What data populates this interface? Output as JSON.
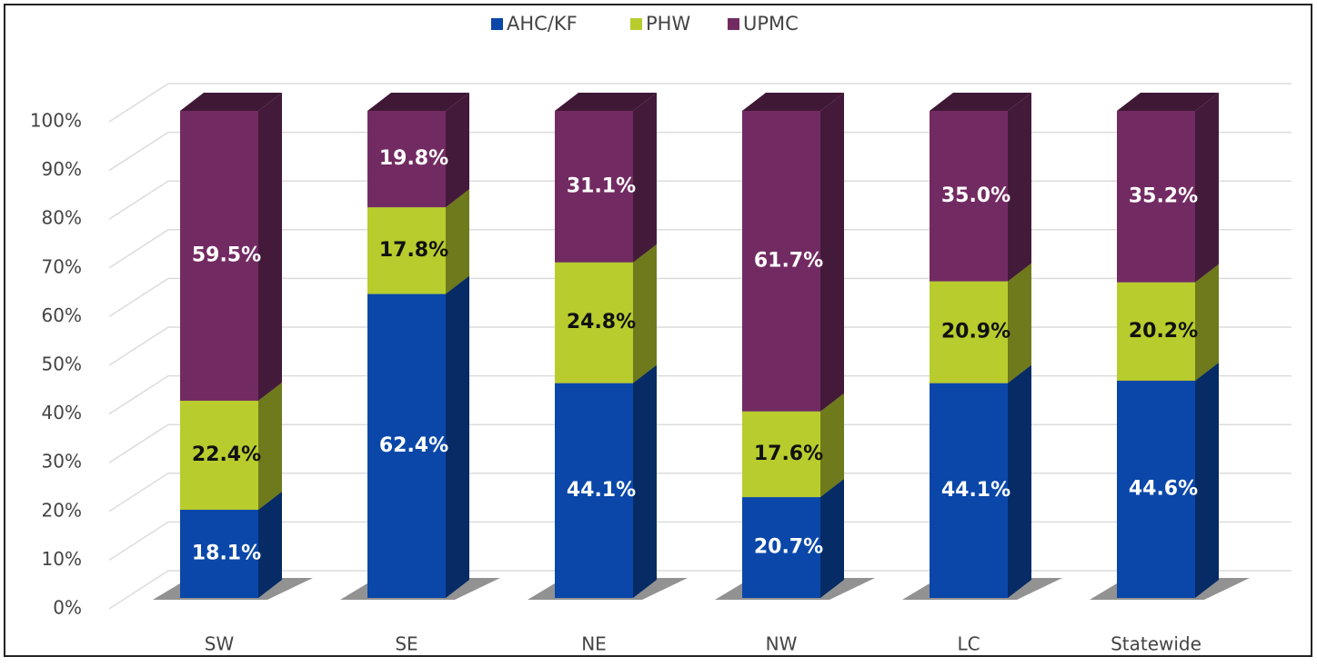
{
  "chart_data": {
    "type": "stacked_bar_3d",
    "categories": [
      "SW",
      "SE",
      "NE",
      "NW",
      "LC",
      "Statewide"
    ],
    "series": [
      {
        "name": "AHC/KF",
        "color": "#0a47a9",
        "values": [
          18.1,
          62.4,
          44.1,
          20.7,
          44.1,
          44.6
        ],
        "value_labels": [
          "18.1%",
          "62.4%",
          "44.1%",
          "20.7%",
          "44.1%",
          "44.6%"
        ]
      },
      {
        "name": "PHW",
        "color": "#b8cc2e",
        "values": [
          22.4,
          17.8,
          24.8,
          17.6,
          20.9,
          20.2
        ],
        "value_labels": [
          "22.4%",
          "17.8%",
          "24.8%",
          "17.6%",
          "20.9%",
          "20.2%"
        ]
      },
      {
        "name": "UPMC",
        "color": "#722b62",
        "values": [
          59.5,
          19.8,
          31.1,
          61.7,
          35.0,
          35.2
        ],
        "value_labels": [
          "59.5%",
          "19.8%",
          "31.1%",
          "61.7%",
          "35.0%",
          "35.2%"
        ]
      }
    ],
    "ylim": [
      0,
      100
    ],
    "yticks": [
      {
        "value": 0,
        "label": "0%"
      },
      {
        "value": 10,
        "label": "10%"
      },
      {
        "value": 20,
        "label": "20%"
      },
      {
        "value": 30,
        "label": "30%"
      },
      {
        "value": 40,
        "label": "40%"
      },
      {
        "value": 50,
        "label": "50%"
      },
      {
        "value": 60,
        "label": "60%"
      },
      {
        "value": 70,
        "label": "70%"
      },
      {
        "value": 80,
        "label": "80%"
      },
      {
        "value": 90,
        "label": "90%"
      },
      {
        "value": 100,
        "label": "100%"
      }
    ],
    "grid": true,
    "legend": "top"
  }
}
